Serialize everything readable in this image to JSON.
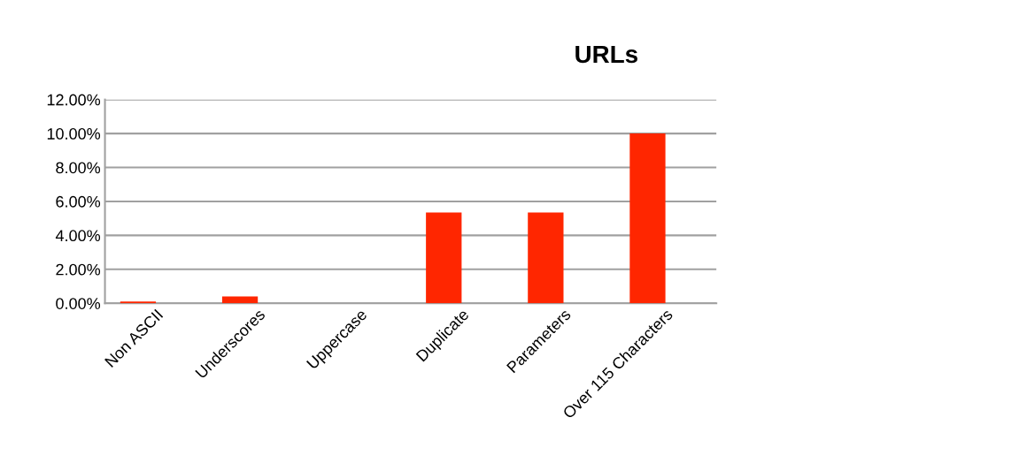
{
  "chart_data": {
    "type": "bar",
    "title": "URLs",
    "categories": [
      "Non ASCII",
      "Underscores",
      "Uppercase",
      "Duplicate",
      "Parameters",
      "Over 115 Characters"
    ],
    "series": [
      {
        "color": "#ff2600",
        "values": [
          0.1,
          0.4,
          0,
          5.35,
          5.35,
          10.0
        ]
      }
    ],
    "ylim": [
      0,
      12
    ],
    "yticks": [
      {
        "value": 0,
        "label": "0.00%"
      },
      {
        "value": 2,
        "label": "2.00%"
      },
      {
        "value": 4,
        "label": "4.00%"
      },
      {
        "value": 6,
        "label": "6.00%"
      },
      {
        "value": 8,
        "label": "8.00%"
      },
      {
        "value": 10,
        "label": "10.00%"
      },
      {
        "value": 12,
        "label": "12.00%"
      }
    ],
    "grid": "y"
  }
}
